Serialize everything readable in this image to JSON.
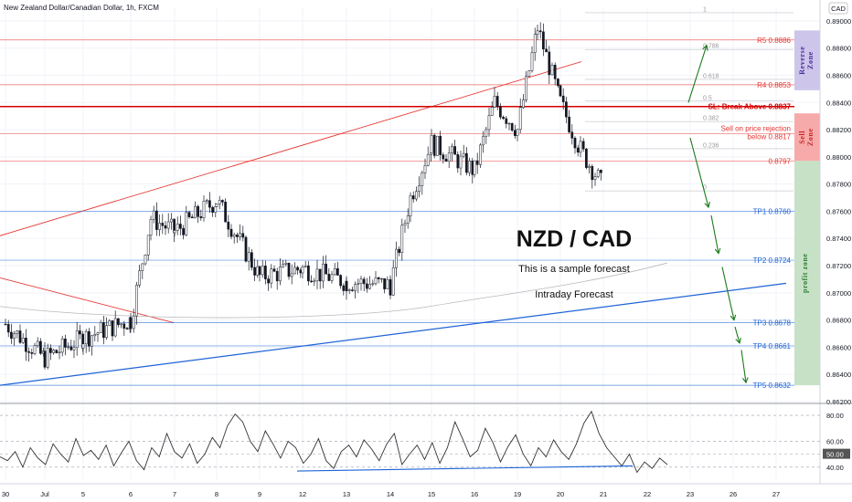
{
  "header": {
    "title": "New Zealand Dollar/Canadian Dollar, 1h, FXCM",
    "currency": "CAD"
  },
  "chart_data": [
    {
      "type": "candlestick",
      "title": "NZD / CAD",
      "notes": [
        "This is a sample forecast",
        "Intraday Forecast"
      ],
      "ylim": [
        0.862,
        0.891
      ],
      "y_ticks": [
        "0.89000",
        "0.88800",
        "0.88600",
        "0.88400",
        "0.88200",
        "0.88000",
        "0.87800",
        "0.87600",
        "0.87400",
        "0.87200",
        "0.87000",
        "0.86800",
        "0.86600",
        "0.86400",
        "0.86200"
      ],
      "x_ticks": [
        "30",
        "Jul",
        "5",
        "6",
        "7",
        "8",
        "9",
        "12",
        "13",
        "14",
        "15",
        "16",
        "19",
        "20",
        "21",
        "22",
        "23",
        "26",
        "27"
      ],
      "price_path": [
        [
          "30",
          0.8677
        ],
        [
          "Jul",
          0.8652
        ],
        [
          "5",
          0.8667
        ],
        [
          "6",
          0.868
        ],
        [
          "6",
          0.8755
        ],
        [
          "7",
          0.8745
        ],
        [
          "8",
          0.8768
        ],
        [
          "9",
          0.8712
        ],
        [
          "12",
          0.8718
        ],
        [
          "13",
          0.8708
        ],
        [
          "14",
          0.8706
        ],
        [
          "14",
          0.877
        ],
        [
          "15",
          0.881
        ],
        [
          "16",
          0.879
        ],
        [
          "16",
          0.884
        ],
        [
          "19",
          0.882
        ],
        [
          "19",
          0.8895
        ],
        [
          "20",
          0.884
        ],
        [
          "20",
          0.8805
        ],
        [
          "21",
          0.8778
        ]
      ],
      "levels": [
        {
          "label": "R5 0.8886",
          "value": 0.8886,
          "color": "#e53935"
        },
        {
          "label": "R4 0.8853",
          "value": 0.8853,
          "color": "#e53935"
        },
        {
          "label": "SL: Break Above 0.8837",
          "value": 0.8837,
          "color": "#d50000"
        },
        {
          "label": "Sell on price rejection",
          "label2": "below 0.8817",
          "value": 0.8817,
          "color": "#e53935"
        },
        {
          "label": "0.8797",
          "value": 0.8797,
          "color": "#e53935"
        },
        {
          "label": "TP1 0.8760",
          "value": 0.876,
          "color": "#1e63d6"
        },
        {
          "label": "TP2 0.8724",
          "value": 0.8724,
          "color": "#1e63d6"
        },
        {
          "label": "TP3 0.8678",
          "value": 0.8678,
          "color": "#1e63d6"
        },
        {
          "label": "TP4 0.8661",
          "value": 0.8661,
          "color": "#1e63d6"
        },
        {
          "label": "TP5 0.8632",
          "value": 0.8632,
          "color": "#1e63d6"
        }
      ],
      "fib": [
        {
          "label": "1",
          "value": 0.8906
        },
        {
          "label": "0.786",
          "value": 0.8879
        },
        {
          "label": "0.618",
          "value": 0.8857
        },
        {
          "label": "0.5",
          "value": 0.8841
        },
        {
          "label": "0.382",
          "value": 0.8826
        },
        {
          "label": "0.236",
          "value": 0.8806
        },
        {
          "label": "0",
          "value": 0.8775
        }
      ],
      "zones": [
        {
          "label": "Reverse Zone",
          "from": 0.8849,
          "to": 0.8893,
          "fill": "#cdc6ea",
          "text": "#4a2d9c"
        },
        {
          "label": "Sell Zone",
          "from": 0.8797,
          "to": 0.8832,
          "fill": "#f7aaaa",
          "text": "#c62828"
        },
        {
          "label": "profit zone",
          "from": 0.8632,
          "to": 0.8797,
          "fill": "#c7e1c7",
          "text": "#2e7d32"
        }
      ],
      "colors": {
        "up": "#131722",
        "down": "#131722",
        "resistance": "#e53935",
        "support": "#1e63d6",
        "forecast": "#1b7a1b"
      }
    },
    {
      "type": "line",
      "ylim": [
        30,
        85
      ],
      "y_ticks": [
        "80.00",
        "60.00",
        "50.00",
        "40.00"
      ],
      "marker": "50.00",
      "series": [
        {
          "values": [
            48,
            45,
            52,
            40,
            55,
            47,
            42,
            58,
            50,
            44,
            62,
            49,
            53,
            46,
            57,
            41,
            51,
            60,
            45,
            38,
            55,
            48,
            66,
            52,
            47,
            58,
            43,
            50,
            63,
            55,
            72,
            81,
            75,
            60,
            52,
            68,
            58,
            47,
            60,
            55,
            43,
            50,
            62,
            45,
            39,
            52,
            57,
            48,
            61,
            54,
            45,
            58,
            66,
            42,
            50,
            57,
            46,
            59,
            43,
            55,
            75,
            62,
            48,
            53,
            70,
            59,
            44,
            56,
            65,
            50,
            41,
            55,
            48,
            61,
            52,
            46,
            58,
            74,
            83,
            66,
            55,
            48,
            41,
            50,
            36,
            44,
            39,
            47,
            42
          ]
        }
      ]
    }
  ]
}
